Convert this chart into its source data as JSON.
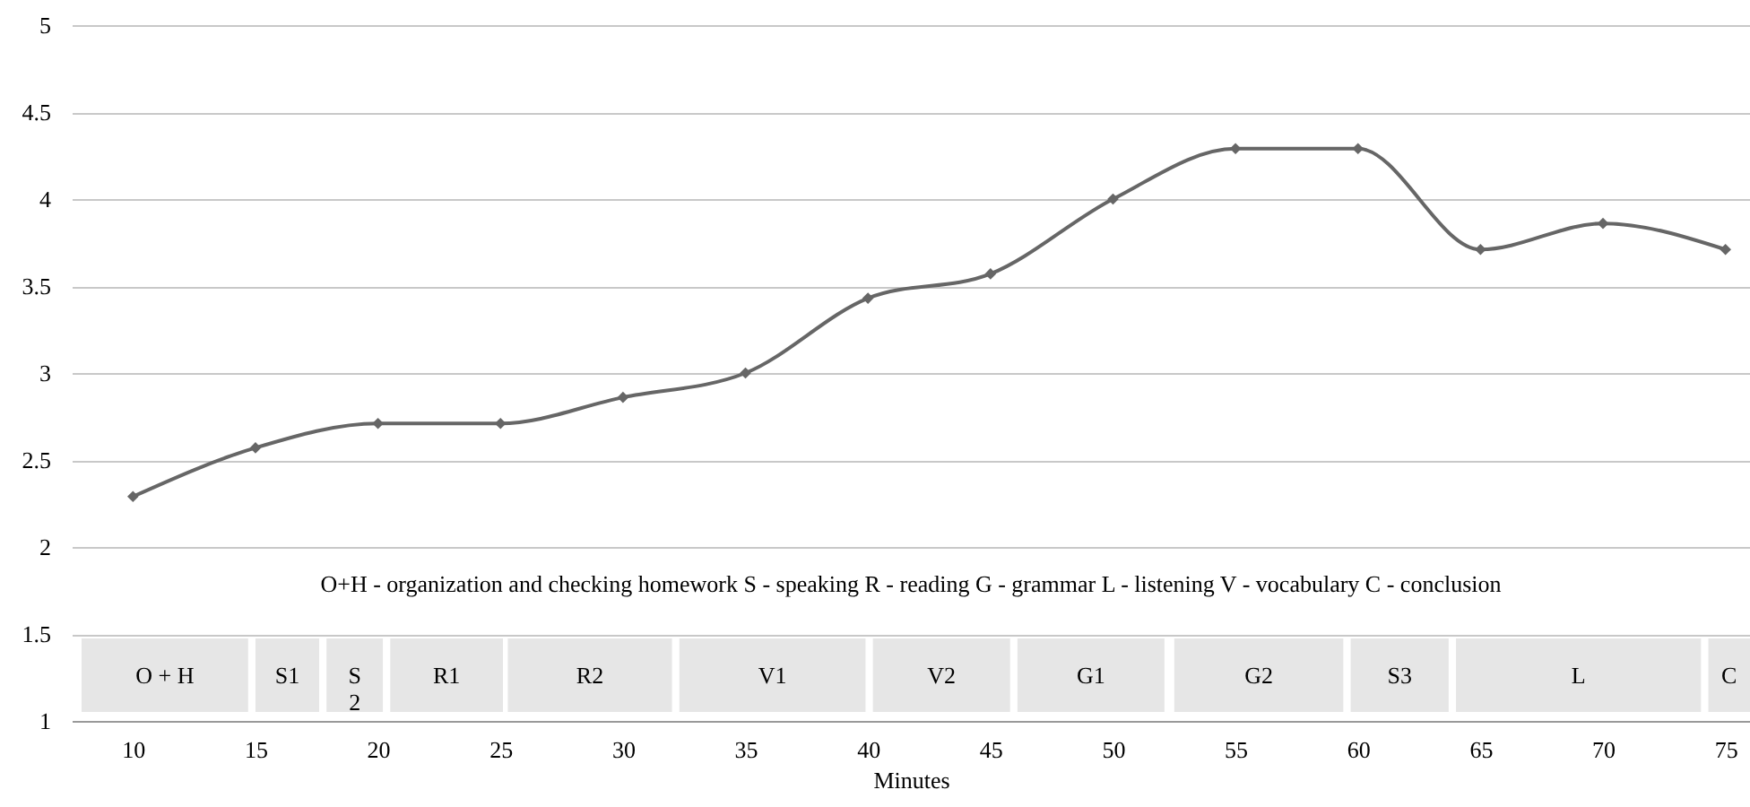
{
  "chart_data": {
    "type": "line",
    "xlabel": "Minutes",
    "x": [
      10,
      15,
      20,
      25,
      30,
      35,
      40,
      45,
      50,
      55,
      60,
      65,
      70,
      75
    ],
    "series": [
      {
        "color": "#666666",
        "values": [
          2.29,
          2.57,
          2.71,
          2.71,
          2.86,
          3.0,
          3.43,
          3.57,
          4.0,
          4.29,
          4.29,
          3.71,
          3.86,
          3.71
        ]
      }
    ],
    "xlim": [
      7.5,
      76
    ],
    "xticks": [
      10,
      15,
      20,
      25,
      30,
      35,
      40,
      45,
      50,
      55,
      60,
      65,
      70,
      75
    ],
    "ylim": [
      1,
      5
    ],
    "yticks": [
      1,
      1.5,
      2,
      2.5,
      3,
      3.5,
      4,
      4.5,
      5
    ],
    "grid": "y",
    "marker": "diamond",
    "line_style": "solid",
    "bands": [
      {
        "axis": "x",
        "from": 7.9,
        "to": 14.7,
        "label": "O + H",
        "color": "#e6e6e6"
      },
      {
        "axis": "x",
        "from": 15.0,
        "to": 17.6,
        "label": "S1",
        "color": "#e6e6e6"
      },
      {
        "axis": "x",
        "from": 17.9,
        "to": 20.2,
        "label": "S2",
        "color": "#e6e6e6"
      },
      {
        "axis": "x",
        "from": 20.5,
        "to": 25.1,
        "label": "R1",
        "color": "#e6e6e6"
      },
      {
        "axis": "x",
        "from": 25.3,
        "to": 32.0,
        "label": "R2",
        "color": "#e6e6e6"
      },
      {
        "axis": "x",
        "from": 32.3,
        "to": 39.9,
        "label": "V1",
        "color": "#e6e6e6"
      },
      {
        "axis": "x",
        "from": 40.2,
        "to": 45.8,
        "label": "V2",
        "color": "#e6e6e6"
      },
      {
        "axis": "x",
        "from": 46.1,
        "to": 52.1,
        "label": "G1",
        "color": "#e6e6e6"
      },
      {
        "axis": "x",
        "from": 52.5,
        "to": 59.4,
        "label": "G2",
        "color": "#e6e6e6"
      },
      {
        "axis": "x",
        "from": 59.7,
        "to": 63.7,
        "label": "S3",
        "color": "#e6e6e6"
      },
      {
        "axis": "x",
        "from": 64.0,
        "to": 74.0,
        "label": "L",
        "color": "#e6e6e6"
      },
      {
        "axis": "x",
        "from": 74.3,
        "to": 76.0,
        "label": "C",
        "color": "#e6e6e6"
      }
    ],
    "annotations": [
      "O+H - organization and checking homework S - speaking R - reading G - grammar L - listening V - vocabulary C - conclusion"
    ]
  }
}
